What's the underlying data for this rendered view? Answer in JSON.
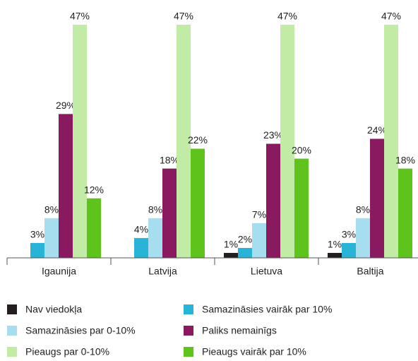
{
  "chart_data": {
    "type": "bar",
    "categories": [
      "Igaunija",
      "Latvija",
      "Lietuva",
      "Baltija"
    ],
    "series": [
      {
        "name": "Nav viedokļa",
        "color": "#231f20",
        "values": [
          null,
          null,
          1,
          1
        ],
        "value_labels": [
          null,
          null,
          "1%",
          "1%"
        ]
      },
      {
        "name": "Samazināsies vairāk par 10%",
        "color": "#27b4d6",
        "values": [
          3,
          4,
          2,
          3
        ],
        "value_labels": [
          "3%",
          "4%",
          "2%",
          "3%"
        ]
      },
      {
        "name": "Samazināsies par 0-10%",
        "color": "#a6def0",
        "values": [
          8,
          8,
          7,
          8
        ],
        "value_labels": [
          "8%",
          "8%",
          "7%",
          "8%"
        ]
      },
      {
        "name": "Paliks nemainīgs",
        "color": "#8a1a5f",
        "values": [
          29,
          18,
          23,
          24
        ],
        "value_labels": [
          "29%",
          "18%",
          "23%",
          "24%"
        ]
      },
      {
        "name": "Pieaugs par 0-10%",
        "color": "#c2eba5",
        "values": [
          47,
          47,
          47,
          47
        ],
        "value_labels": [
          "47%",
          "47%",
          "47%",
          "47%"
        ]
      },
      {
        "name": "Pieaugs vairāk par 10%",
        "color": "#5ec31b",
        "values": [
          12,
          22,
          20,
          18
        ],
        "value_labels": [
          "12%",
          "22%",
          "20%",
          "18%"
        ]
      }
    ]
  }
}
